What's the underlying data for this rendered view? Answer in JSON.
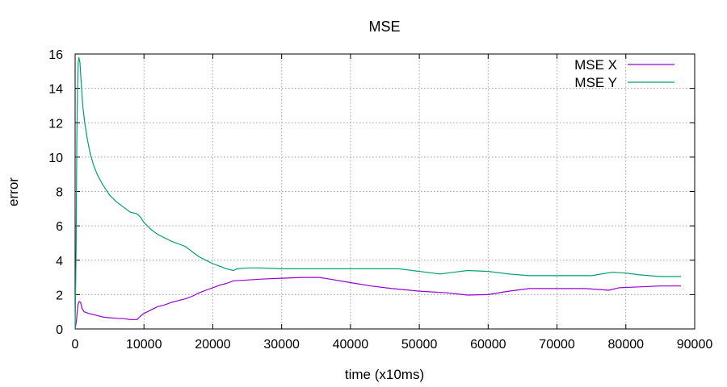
{
  "chart_data": {
    "type": "line",
    "title": "MSE",
    "xlabel": "time (x10ms)",
    "ylabel": "error",
    "xlim": [
      0,
      90000
    ],
    "ylim": [
      0,
      16
    ],
    "xticks": [
      0,
      10000,
      20000,
      30000,
      40000,
      50000,
      60000,
      70000,
      80000,
      90000
    ],
    "yticks": [
      0,
      2,
      4,
      6,
      8,
      10,
      12,
      14,
      16
    ],
    "grid": true,
    "legend_position": "top-right",
    "series": [
      {
        "name": "MSE X",
        "color": "#9400d3",
        "points": [
          [
            0,
            0
          ],
          [
            200,
            0.5
          ],
          [
            400,
            1.4
          ],
          [
            600,
            1.6
          ],
          [
            800,
            1.55
          ],
          [
            1000,
            1.2
          ],
          [
            1300,
            1.0
          ],
          [
            2000,
            0.9
          ],
          [
            3000,
            0.8
          ],
          [
            4000,
            0.7
          ],
          [
            5000,
            0.65
          ],
          [
            6000,
            0.62
          ],
          [
            7000,
            0.6
          ],
          [
            8000,
            0.55
          ],
          [
            9000,
            0.55
          ],
          [
            9500,
            0.75
          ],
          [
            10000,
            0.9
          ],
          [
            11000,
            1.1
          ],
          [
            12000,
            1.3
          ],
          [
            13000,
            1.4
          ],
          [
            14000,
            1.55
          ],
          [
            15000,
            1.65
          ],
          [
            16000,
            1.75
          ],
          [
            17000,
            1.9
          ],
          [
            18000,
            2.1
          ],
          [
            19000,
            2.25
          ],
          [
            20000,
            2.4
          ],
          [
            21000,
            2.55
          ],
          [
            22000,
            2.65
          ],
          [
            23000,
            2.8
          ],
          [
            25000,
            2.85
          ],
          [
            27000,
            2.9
          ],
          [
            30000,
            2.95
          ],
          [
            33000,
            3.0
          ],
          [
            35500,
            3.0
          ],
          [
            37000,
            2.9
          ],
          [
            40000,
            2.7
          ],
          [
            43000,
            2.5
          ],
          [
            46000,
            2.35
          ],
          [
            50000,
            2.2
          ],
          [
            54000,
            2.1
          ],
          [
            57000,
            1.97
          ],
          [
            60000,
            2.0
          ],
          [
            63000,
            2.2
          ],
          [
            66000,
            2.35
          ],
          [
            70000,
            2.35
          ],
          [
            74000,
            2.35
          ],
          [
            76000,
            2.3
          ],
          [
            77500,
            2.25
          ],
          [
            79000,
            2.4
          ],
          [
            82000,
            2.45
          ],
          [
            85000,
            2.5
          ],
          [
            88000,
            2.5
          ]
        ]
      },
      {
        "name": "MSE Y",
        "color": "#009e73",
        "points": [
          [
            0,
            0
          ],
          [
            150,
            5.0
          ],
          [
            250,
            11.0
          ],
          [
            350,
            14.0
          ],
          [
            450,
            15.5
          ],
          [
            550,
            15.8
          ],
          [
            700,
            15.5
          ],
          [
            900,
            14.2
          ],
          [
            1100,
            13.0
          ],
          [
            1400,
            12.0
          ],
          [
            1800,
            11.0
          ],
          [
            2200,
            10.2
          ],
          [
            2700,
            9.5
          ],
          [
            3200,
            9.0
          ],
          [
            4000,
            8.4
          ],
          [
            5000,
            7.8
          ],
          [
            6000,
            7.4
          ],
          [
            7000,
            7.1
          ],
          [
            8000,
            6.8
          ],
          [
            9000,
            6.7
          ],
          [
            9500,
            6.5
          ],
          [
            10000,
            6.2
          ],
          [
            11000,
            5.8
          ],
          [
            12000,
            5.5
          ],
          [
            13000,
            5.3
          ],
          [
            14000,
            5.1
          ],
          [
            15000,
            4.95
          ],
          [
            16000,
            4.8
          ],
          [
            17000,
            4.5
          ],
          [
            18000,
            4.2
          ],
          [
            19000,
            4.0
          ],
          [
            20000,
            3.8
          ],
          [
            21000,
            3.65
          ],
          [
            22000,
            3.5
          ],
          [
            23000,
            3.4
          ],
          [
            23500,
            3.5
          ],
          [
            25000,
            3.55
          ],
          [
            27000,
            3.55
          ],
          [
            30000,
            3.5
          ],
          [
            35000,
            3.5
          ],
          [
            40000,
            3.5
          ],
          [
            47000,
            3.5
          ],
          [
            49000,
            3.4
          ],
          [
            51000,
            3.3
          ],
          [
            53000,
            3.2
          ],
          [
            55000,
            3.3
          ],
          [
            57000,
            3.4
          ],
          [
            60000,
            3.35
          ],
          [
            63000,
            3.2
          ],
          [
            66000,
            3.1
          ],
          [
            70000,
            3.1
          ],
          [
            75000,
            3.1
          ],
          [
            78000,
            3.3
          ],
          [
            80000,
            3.25
          ],
          [
            82000,
            3.15
          ],
          [
            85000,
            3.05
          ],
          [
            88000,
            3.05
          ]
        ]
      }
    ]
  }
}
